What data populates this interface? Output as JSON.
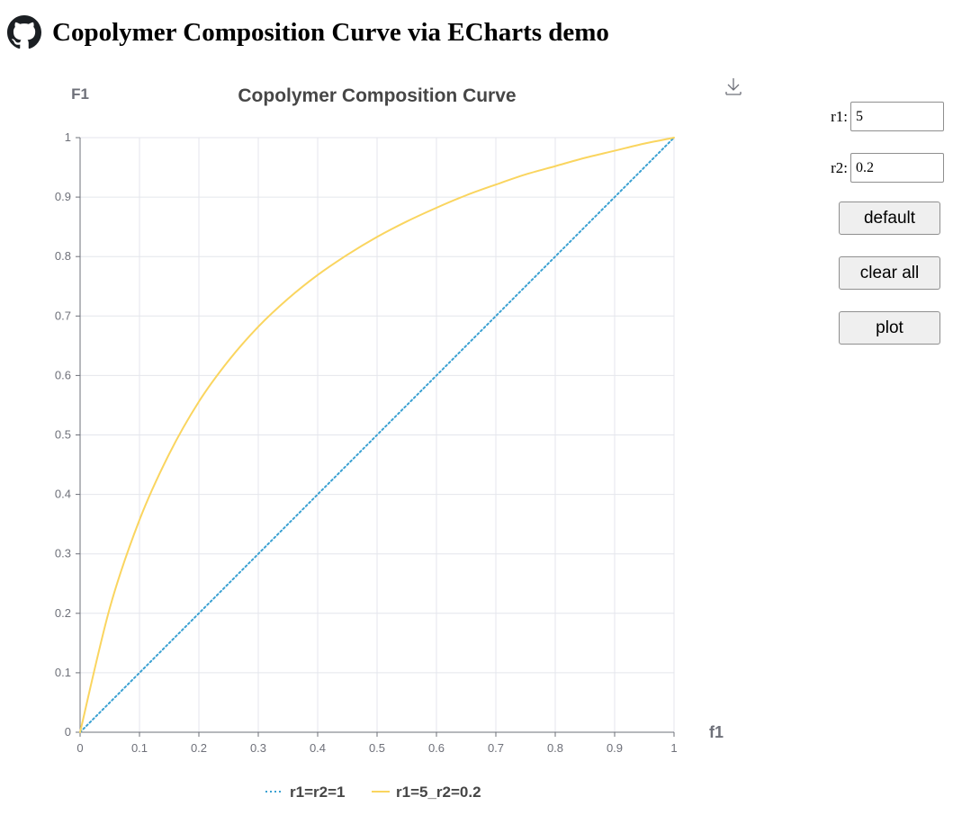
{
  "page": {
    "title": "Copolymer Composition Curve via ECharts demo",
    "logo_icon": "github-icon"
  },
  "toolbox": {
    "icon": "download-icon"
  },
  "controls": {
    "r1": {
      "label": "r1:",
      "value": "5"
    },
    "r2": {
      "label": "r2:",
      "value": "0.2"
    },
    "buttons": {
      "default": "default",
      "clear_all": "clear all",
      "plot": "plot"
    }
  },
  "colors": {
    "series_linear": "#3ba1d2",
    "series_curve": "#fad55f",
    "grid": "#e4e6ec",
    "axis": "#6e7079",
    "text": "#464646"
  },
  "chart_data": {
    "type": "line",
    "title": "Copolymer Composition Curve",
    "xlabel": "f1",
    "ylabel": "F1",
    "xlim": [
      0,
      1
    ],
    "ylim": [
      0,
      1
    ],
    "grid": true,
    "legend_position": "bottom-center",
    "xticks": [
      "0",
      "0.1",
      "0.2",
      "0.3",
      "0.4",
      "0.5",
      "0.6",
      "0.7",
      "0.8",
      "0.9",
      "1"
    ],
    "yticks": [
      "0",
      "0.1",
      "0.2",
      "0.3",
      "0.4",
      "0.5",
      "0.6",
      "0.7",
      "0.8",
      "0.9",
      "1"
    ],
    "series": [
      {
        "name": "r1=r2=1",
        "style": "dotted",
        "r1": 1,
        "r2": 1,
        "x": [
          0,
          0.1,
          0.2,
          0.3,
          0.4,
          0.5,
          0.6,
          0.7,
          0.8,
          0.9,
          1
        ],
        "y": [
          0,
          0.1,
          0.2,
          0.3,
          0.4,
          0.5,
          0.6,
          0.7,
          0.8,
          0.9,
          1
        ]
      },
      {
        "name": "r1=5_r2=0.2",
        "style": "solid",
        "r1": 5,
        "r2": 0.2,
        "x": [
          0,
          0.05,
          0.1,
          0.15,
          0.2,
          0.25,
          0.3,
          0.35,
          0.4,
          0.45,
          0.5,
          0.55,
          0.6,
          0.65,
          0.7,
          0.75,
          0.8,
          0.85,
          0.9,
          0.95,
          1
        ],
        "y": [
          0,
          0.209,
          0.357,
          0.468,
          0.556,
          0.625,
          0.682,
          0.729,
          0.769,
          0.803,
          0.833,
          0.859,
          0.882,
          0.903,
          0.921,
          0.938,
          0.952,
          0.966,
          0.978,
          0.99,
          1
        ]
      }
    ]
  }
}
